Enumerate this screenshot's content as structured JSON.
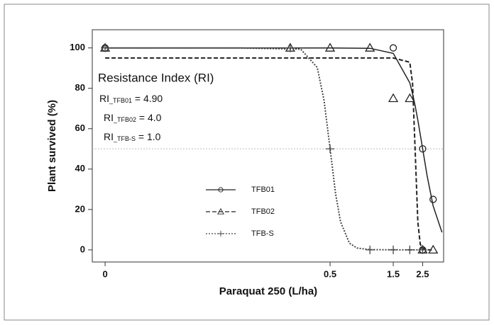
{
  "chart_data": {
    "type": "dose-response",
    "xlabel": "Paraquat 250 (L/ha)",
    "ylabel": "Plant survived (%)",
    "xscale": "log",
    "xlim": [
      0.008,
      3.6
    ],
    "xticks": [
      {
        "value": 0.01,
        "label": "0"
      },
      0.5,
      1.5,
      2.5
    ],
    "ylim": [
      -6,
      109
    ],
    "yticks": [
      0,
      20,
      40,
      60,
      80,
      100
    ],
    "reference_line": 50,
    "annotation_title": "Resistance Index (RI)",
    "annotations": [
      {
        "prefix": "RI",
        "sub": "_TFB01",
        "suffix": " = 4.90"
      },
      {
        "prefix": "RI",
        "sub": "_TFB02",
        "suffix": " = 4.0"
      },
      {
        "prefix": "RI",
        "sub": "_TFB-S",
        "suffix": " = 1.0"
      }
    ],
    "series": [
      {
        "name": "TFB01",
        "color": "#222222",
        "marker": "circle",
        "line": "solid",
        "x": [
          0.01,
          1.5,
          2.5,
          3.0,
          2.5
        ],
        "values": [
          100,
          100,
          50,
          25,
          0
        ],
        "curve_x": [
          0.01,
          0.1,
          0.5,
          1,
          1.5,
          2,
          2.1,
          2.2,
          2.3,
          2.4,
          2.5,
          2.7,
          3,
          3.5
        ],
        "curve_values": [
          100,
          100,
          100,
          99.8,
          97.3,
          82.7,
          77.2,
          71.0,
          64.2,
          57.1,
          50,
          36.8,
          21.8,
          8.7
        ]
      },
      {
        "name": "TFB02",
        "color": "#222222",
        "marker": "triangle",
        "line": "dashed",
        "x": [
          0.01,
          0.25,
          0.5,
          1.0,
          1.5,
          2.0,
          2.5,
          3.0
        ],
        "values": [
          100,
          100,
          100,
          100,
          75,
          75,
          0,
          0
        ],
        "curve_x": [
          0.01,
          0.1,
          0.5,
          1,
          1.5,
          2,
          2.1,
          2.2,
          2.3,
          2.4,
          2.5,
          2.7,
          3
        ],
        "curve_values": [
          95,
          95,
          95,
          95,
          95,
          92.9,
          82.2,
          47.5,
          13.8,
          2.8,
          0.6,
          0,
          0
        ]
      },
      {
        "name": "TFB-S",
        "color": "#444444",
        "marker": "plus",
        "line": "dotted",
        "x": [
          0.01,
          0.25,
          0.5,
          1.0,
          1.5,
          2.0,
          2.5
        ],
        "values": [
          100,
          100,
          50,
          0,
          0,
          0,
          0
        ],
        "curve_x": [
          0.01,
          0.1,
          0.3,
          0.4,
          0.45,
          0.5,
          0.55,
          0.6,
          0.7,
          0.8,
          1,
          2,
          3
        ],
        "curve_values": [
          100,
          100,
          99.4,
          90.3,
          74.1,
          50,
          27.8,
          13.9,
          3.3,
          0.9,
          0.1,
          0,
          0
        ]
      }
    ]
  }
}
